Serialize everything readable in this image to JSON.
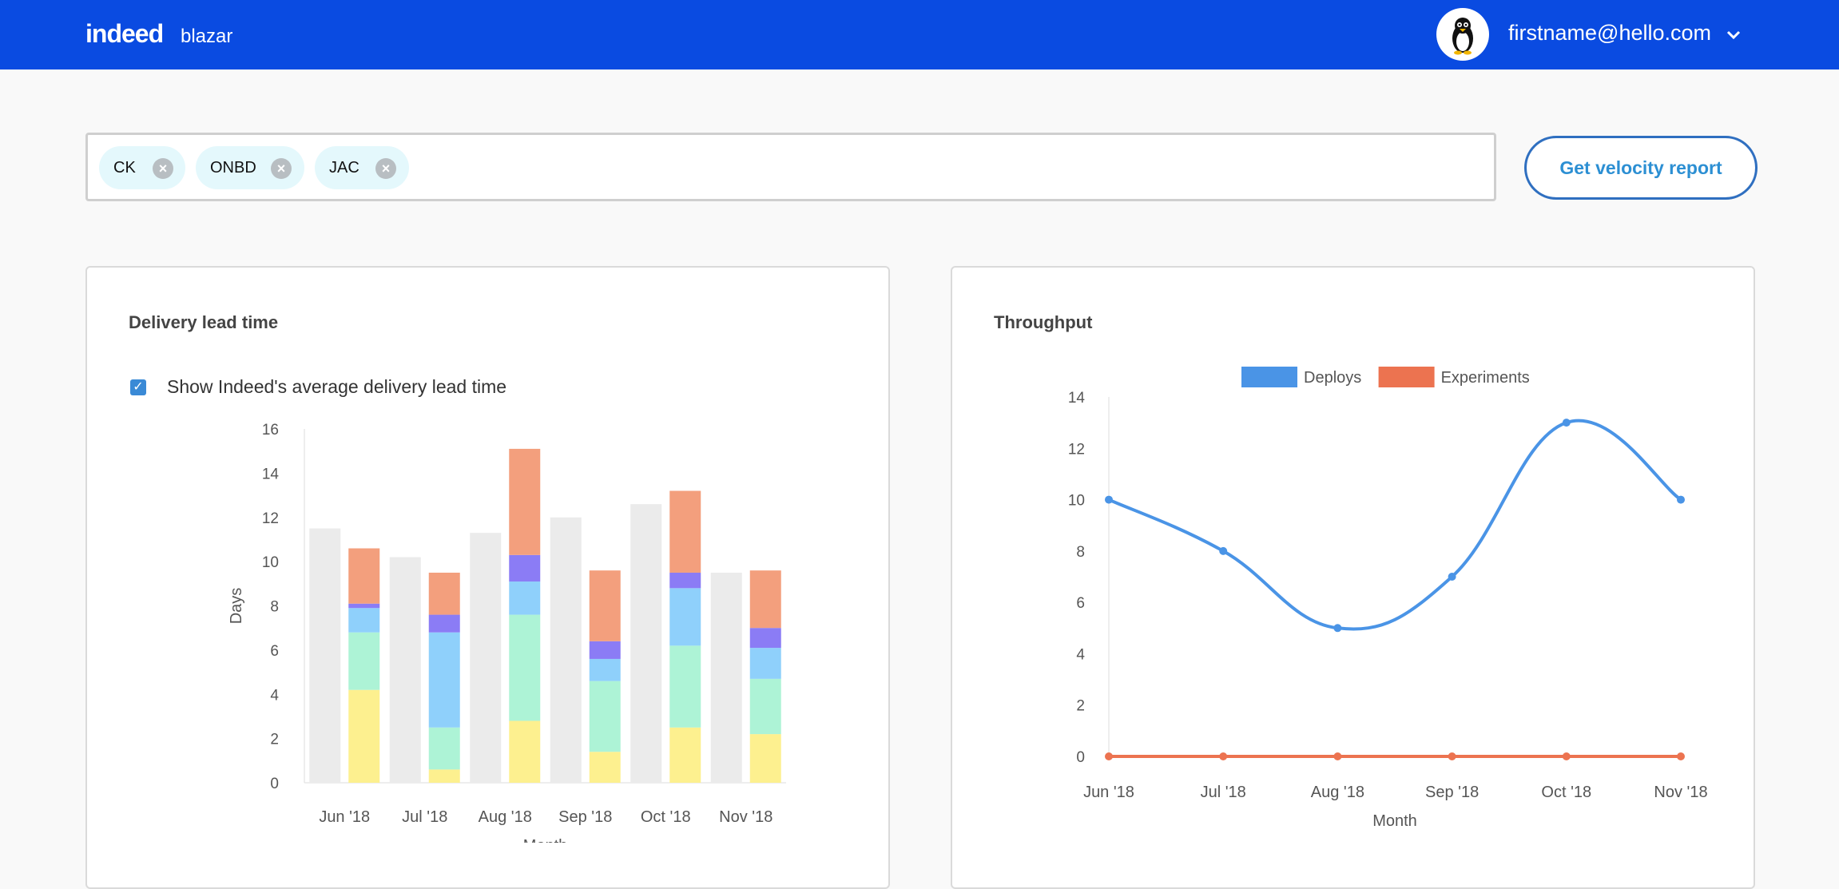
{
  "header": {
    "logo_text": "indeed",
    "app_name": "blazar",
    "user_email": "firstname@hello.com",
    "avatar_icon": "penguin-avatar-icon",
    "brand_color": "#0a4be1"
  },
  "search": {
    "chips": [
      {
        "label": "CK"
      },
      {
        "label": "ONBD"
      },
      {
        "label": "JAC"
      }
    ],
    "button_label": "Get velocity report"
  },
  "lead_time_card": {
    "title": "Delivery lead time",
    "checkbox_label": "Show Indeed's average delivery lead time",
    "checkbox_checked": true
  },
  "throughput_card": {
    "title": "Throughput"
  },
  "chart_data": [
    {
      "type": "bar",
      "stacked": true,
      "categories": [
        "Jun '18",
        "Jul '18",
        "Aug '18",
        "Sep '18",
        "Oct '18",
        "Nov '18"
      ],
      "average_values": [
        11.5,
        10.2,
        11.3,
        12.0,
        12.6,
        9.5
      ],
      "average_color": "#ebebeb",
      "series": [
        {
          "color": "#fdf08f",
          "values": [
            4.2,
            0.6,
            2.8,
            1.4,
            2.5,
            2.2
          ]
        },
        {
          "color": "#adf3d6",
          "values": [
            2.6,
            1.9,
            4.8,
            3.2,
            3.7,
            2.5
          ]
        },
        {
          "color": "#8fd0fb",
          "values": [
            1.1,
            4.3,
            1.5,
            1.0,
            2.6,
            1.4
          ]
        },
        {
          "color": "#8b7cf5",
          "values": [
            0.2,
            0.8,
            1.2,
            0.8,
            0.7,
            0.9
          ]
        },
        {
          "color": "#f39f7d",
          "values": [
            2.5,
            1.9,
            4.8,
            3.2,
            3.7,
            2.6
          ]
        }
      ],
      "xlabel": "Month",
      "ylabel": "Days",
      "ylim": [
        0,
        16
      ],
      "yticks": [
        0,
        2,
        4,
        6,
        8,
        10,
        12,
        14,
        16
      ],
      "grid": false
    },
    {
      "type": "line",
      "categories": [
        "Jun '18",
        "Jul '18",
        "Aug '18",
        "Sep '18",
        "Oct '18",
        "Nov '18"
      ],
      "series": [
        {
          "name": "Deploys",
          "color": "#4a94e6",
          "values": [
            10,
            8,
            5,
            7,
            13,
            10
          ]
        },
        {
          "name": "Experiments",
          "color": "#ec7350",
          "values": [
            0,
            0,
            0,
            0,
            0,
            0
          ]
        }
      ],
      "xlabel": "Month",
      "ylabel": "",
      "ylim": [
        0,
        14
      ],
      "yticks": [
        0,
        2,
        4,
        6,
        8,
        10,
        12,
        14
      ],
      "legend": "top",
      "grid": false
    }
  ]
}
